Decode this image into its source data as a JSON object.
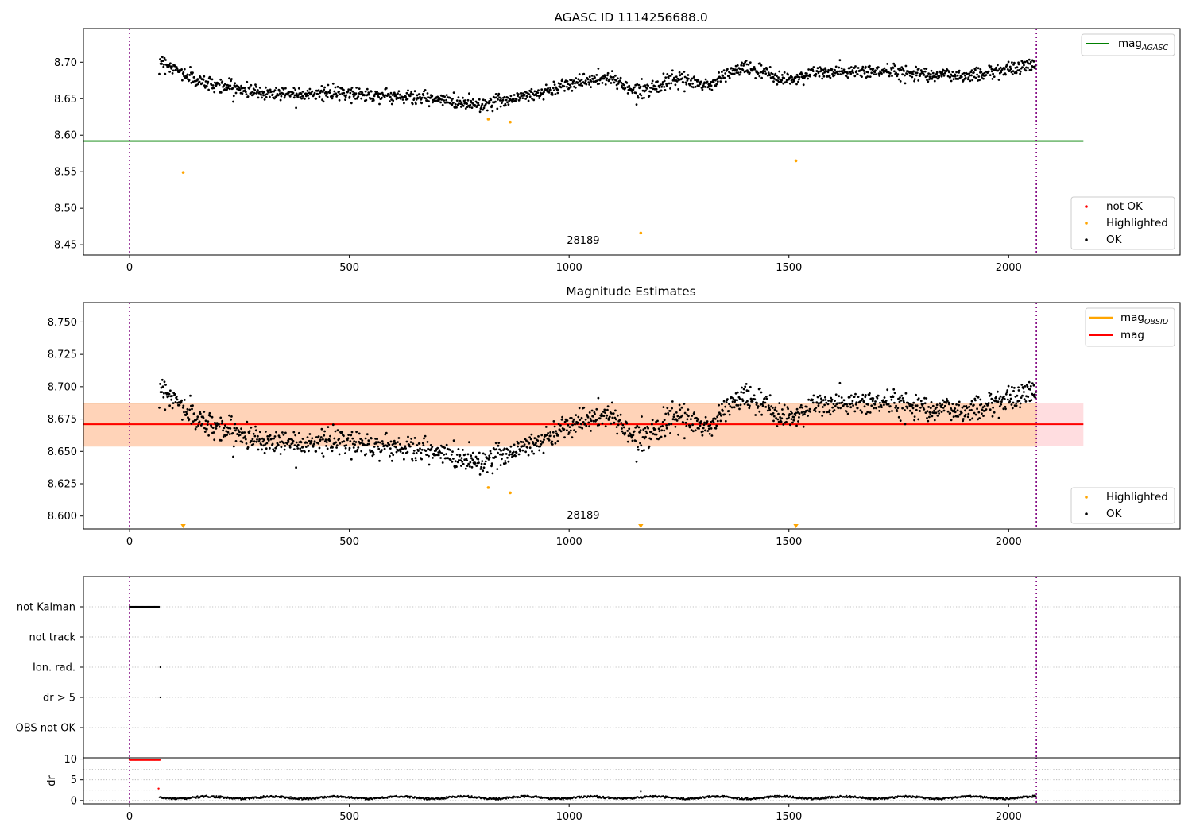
{
  "colors": {
    "ok": "#000000",
    "highlighted": "#ffa500",
    "not_ok": "#ff0000",
    "mag_agasc": "#008000",
    "mag": "#ff0000",
    "mag_obsid": "#ffa500",
    "band_obsid": "#ffd3b8",
    "band_mag": "#ffdde0",
    "vline": "#800080"
  },
  "chart_data": [
    {
      "id": "top",
      "type": "scatter",
      "title": "AGASC ID 1114256688.0",
      "xlim": [
        -105,
        2390
      ],
      "ylim": [
        8.436,
        8.746
      ],
      "x_ticks": [
        0,
        500,
        1000,
        1500,
        2000
      ],
      "y_ticks": [
        "8.45",
        "8.50",
        "8.55",
        "8.60",
        "8.65",
        "8.70"
      ],
      "vlines": [
        0,
        2063
      ],
      "obsid_label": "28189",
      "obsid_label_pos": {
        "x": 1032,
        "y": 8.451
      },
      "hlines": [
        {
          "name": "mag_AGASC",
          "y": 8.592,
          "x": [
            -105,
            2170
          ],
          "color_key": "mag_agasc"
        }
      ],
      "scatter_ok": {
        "x_range": [
          68,
          2063
        ],
        "step": 1.3,
        "trend": [
          [
            68,
            8.703
          ],
          [
            150,
            8.675
          ],
          [
            300,
            8.658
          ],
          [
            500,
            8.657
          ],
          [
            650,
            8.652
          ],
          [
            800,
            8.642
          ],
          [
            950,
            8.66
          ],
          [
            1000,
            8.672
          ],
          [
            1100,
            8.678
          ],
          [
            1150,
            8.66
          ],
          [
            1250,
            8.676
          ],
          [
            1320,
            8.668
          ],
          [
            1360,
            8.685
          ],
          [
            1400,
            8.693
          ],
          [
            1500,
            8.675
          ],
          [
            1550,
            8.685
          ],
          [
            1700,
            8.688
          ],
          [
            1800,
            8.685
          ],
          [
            1900,
            8.681
          ],
          [
            2063,
            8.697
          ]
        ],
        "noise": 0.008
      },
      "highlighted": [
        [
          122,
          8.549
        ],
        [
          816,
          8.622
        ],
        [
          866,
          8.618
        ],
        [
          1163,
          8.466
        ],
        [
          1516,
          8.565
        ]
      ],
      "legend_top": [
        {
          "label": "mag",
          "sub": "AGASC",
          "kind": "line",
          "color_key": "mag_agasc"
        }
      ],
      "legend_bottom": [
        {
          "label": "not OK",
          "kind": "dot",
          "color_key": "not_ok"
        },
        {
          "label": "Highlighted",
          "kind": "dot",
          "color_key": "highlighted"
        },
        {
          "label": "OK",
          "kind": "dot",
          "color_key": "ok"
        }
      ]
    },
    {
      "id": "middle",
      "type": "scatter",
      "title": "Magnitude Estimates",
      "xlim": [
        -105,
        2390
      ],
      "ylim": [
        8.59,
        8.765
      ],
      "x_ticks": [
        0,
        500,
        1000,
        1500,
        2000
      ],
      "y_ticks": [
        "8.600",
        "8.625",
        "8.650",
        "8.675",
        "8.700",
        "8.725",
        "8.750"
      ],
      "vlines": [
        0,
        2063
      ],
      "obsid_label": "28189",
      "obsid_label_pos": {
        "x": 1032,
        "y": 8.598
      },
      "bands": [
        {
          "x": [
            -105,
            2170
          ],
          "y": [
            8.654,
            8.687
          ],
          "color_key": "band_mag"
        },
        {
          "x": [
            -105,
            2063
          ],
          "y": [
            8.654,
            8.687
          ],
          "color_key": "band_obsid"
        }
      ],
      "hlines": [
        {
          "name": "mag_OBSID",
          "y": 8.671,
          "x": [
            -105,
            2063
          ],
          "color_key": "mag_obsid"
        },
        {
          "name": "mag",
          "y": 8.671,
          "x": [
            -105,
            2170
          ],
          "color_key": "mag"
        }
      ],
      "scatter_ok": {
        "x_range": [
          68,
          2063
        ],
        "step": 1.3,
        "trend": [
          [
            68,
            8.701
          ],
          [
            150,
            8.675
          ],
          [
            300,
            8.658
          ],
          [
            500,
            8.657
          ],
          [
            650,
            8.652
          ],
          [
            800,
            8.642
          ],
          [
            950,
            8.66
          ],
          [
            1000,
            8.672
          ],
          [
            1100,
            8.678
          ],
          [
            1150,
            8.66
          ],
          [
            1250,
            8.676
          ],
          [
            1320,
            8.668
          ],
          [
            1360,
            8.685
          ],
          [
            1400,
            8.693
          ],
          [
            1500,
            8.675
          ],
          [
            1550,
            8.685
          ],
          [
            1700,
            8.688
          ],
          [
            1800,
            8.685
          ],
          [
            1900,
            8.681
          ],
          [
            2063,
            8.697
          ]
        ],
        "noise": 0.008
      },
      "highlighted": [
        [
          816,
          8.622
        ],
        [
          866,
          8.618
        ]
      ],
      "below_markers": [
        122,
        1163,
        1516
      ],
      "legend_top": [
        {
          "label": "mag",
          "sub": "OBSID",
          "kind": "line",
          "color_key": "mag_obsid"
        },
        {
          "label": "mag",
          "sub": "",
          "kind": "line",
          "color_key": "mag"
        }
      ],
      "legend_bottom": [
        {
          "label": "Highlighted",
          "kind": "dot",
          "color_key": "highlighted"
        },
        {
          "label": "OK",
          "kind": "dot",
          "color_key": "ok"
        }
      ]
    },
    {
      "id": "flags",
      "type": "scatter",
      "xlim": [
        -105,
        2390
      ],
      "categories": [
        "not Kalman",
        "not track",
        "Ion. rad.",
        "dr > 5",
        "OBS not OK"
      ],
      "flag_points": {
        "not Kalman": {
          "x_range": [
            0,
            68
          ]
        },
        "not track": {
          "x_range": []
        },
        "Ion. rad.": {
          "x": [
            70
          ]
        },
        "dr > 5": {
          "x": [
            70
          ]
        },
        "OBS not OK": {
          "x_range": []
        }
      },
      "vlines": [
        0,
        2063
      ]
    },
    {
      "id": "dr",
      "type": "scatter",
      "ylabel": "dr",
      "xlim": [
        -105,
        2390
      ],
      "ylim": [
        -0.8,
        10.3
      ],
      "x_ticks": [
        0,
        500,
        1000,
        1500,
        2000
      ],
      "y_ticks": [
        "0",
        "5",
        "10"
      ],
      "vlines": [
        0,
        2063
      ],
      "not_ok_cap": {
        "x_range": [
          0,
          70
        ],
        "y": 9.8
      },
      "not_ok_extra": [
        [
          66,
          2.9
        ]
      ],
      "ok_series": {
        "x_range": [
          68,
          2063
        ],
        "step": 1.6,
        "level": 0.7,
        "amplitude": 0.45
      },
      "ok_outlier": [
        1163,
        2.2
      ]
    }
  ]
}
